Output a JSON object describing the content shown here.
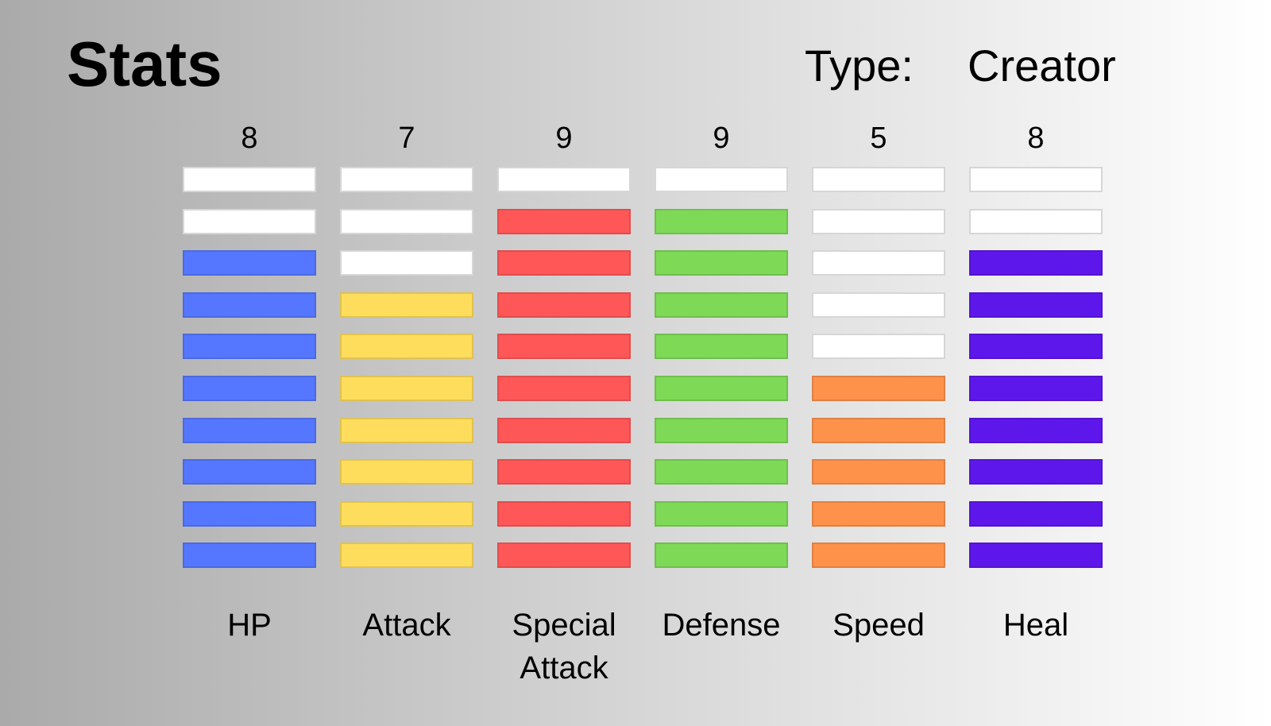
{
  "header": {
    "title": "Stats",
    "type_label": "Type:",
    "type_value": "Creator"
  },
  "chart_data": {
    "type": "bar",
    "max_segments": 10,
    "empty_color": "#ffffff",
    "categories": [
      "HP",
      "Attack",
      "Special Attack",
      "Defense",
      "Speed",
      "Heal"
    ],
    "values": [
      8,
      7,
      9,
      9,
      5,
      8
    ],
    "colors": [
      "#5577ff",
      "#ffdd5c",
      "#ff5757",
      "#7ed957",
      "#ff924b",
      "#5e17eb"
    ]
  }
}
